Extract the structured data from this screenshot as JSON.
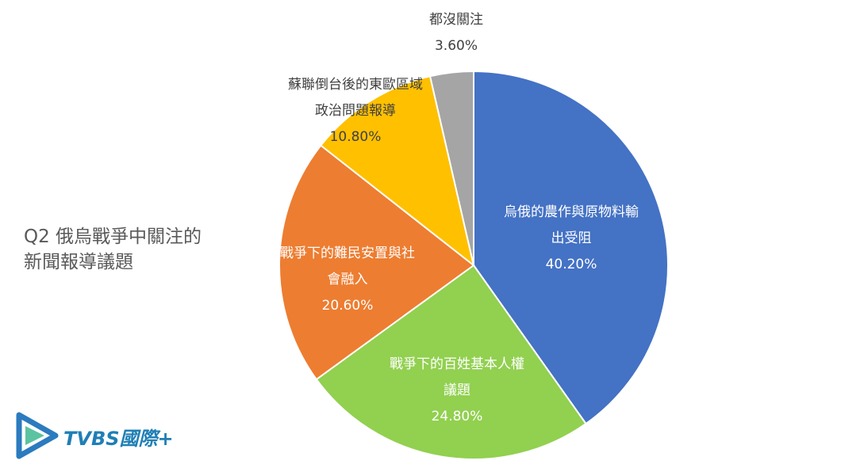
{
  "chart_data": {
    "type": "pie",
    "title": "Q2 俄烏戰爭中關注的新聞報導議題",
    "categories": [
      "烏俄的農作與原物料輸出受阻",
      "戰爭下的百姓基本人權議題",
      "戰爭下的難民安置與社會融入",
      "蘇聯倒台後的東歐區域政治問題報導",
      "都沒關注"
    ],
    "values": [
      40.2,
      24.8,
      20.6,
      10.8,
      3.6
    ],
    "value_labels": [
      "40.20%",
      "24.80%",
      "20.60%",
      "10.80%",
      "3.60%"
    ],
    "colors": [
      "#4472c4",
      "#92d050",
      "#ed7d31",
      "#ffc000",
      "#a5a5a5"
    ]
  },
  "logo": "TVBS國際+"
}
